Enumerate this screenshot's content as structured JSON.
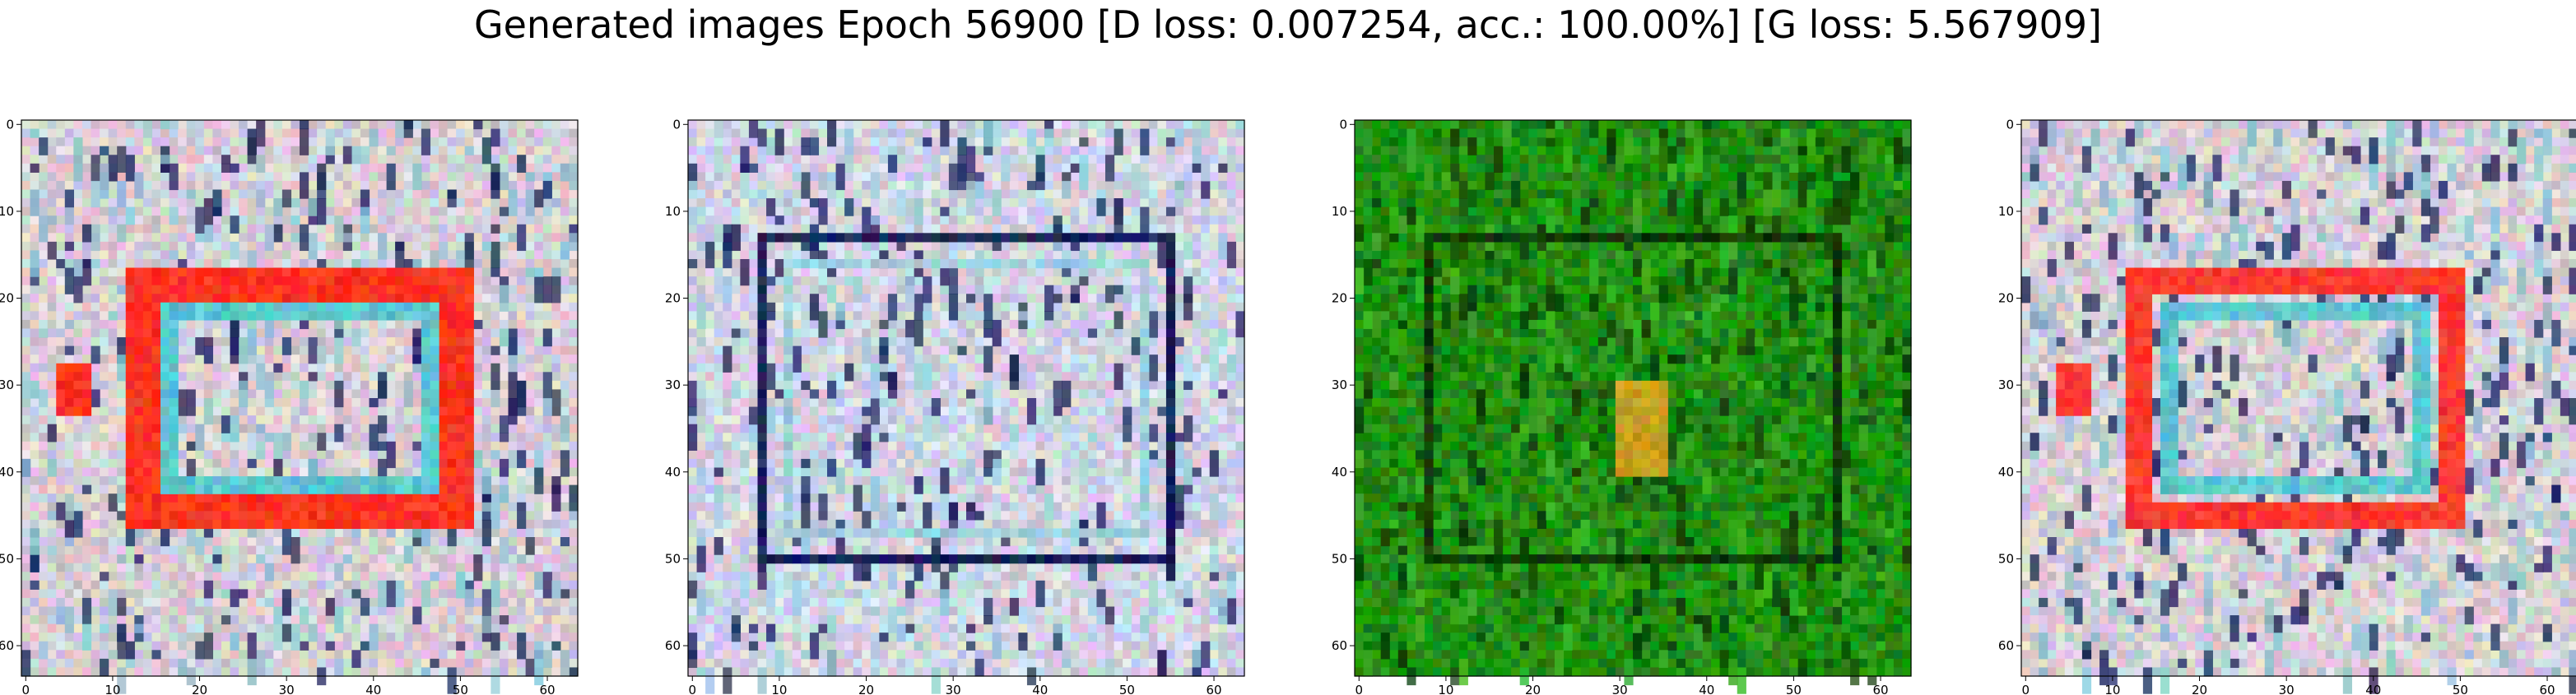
{
  "figure": {
    "title": "Generated images Epoch 56900 [D loss: 0.007254, acc.: 100.00%] [G loss: 5.567909]"
  },
  "chart_data": [
    {
      "type": "heatmap",
      "panel": 1,
      "xlim": [
        -0.5,
        63.5
      ],
      "ylim": [
        63.5,
        -0.5
      ],
      "xticks": [
        0,
        10,
        20,
        30,
        40,
        50,
        60
      ],
      "yticks": [
        0,
        10,
        20,
        30,
        40,
        50,
        60
      ],
      "grid": false,
      "palette": {
        "background": "#d7cfd6",
        "line_dark": "#1a2358",
        "line_light": "#8fc4d2",
        "accent": "#ff3420"
      },
      "regions": [
        {
          "shape": "frame",
          "x": [
            11.5,
            51.5
          ],
          "y": [
            16.5,
            46.5
          ],
          "thickness": 4,
          "color": "#ff3420"
        },
        {
          "shape": "frame",
          "x": [
            15.5,
            47.5
          ],
          "y": [
            20.5,
            42.5
          ],
          "thickness": 2,
          "color": "#5cc7cf"
        },
        {
          "shape": "blob",
          "x": [
            4,
            7
          ],
          "y": [
            28,
            33
          ],
          "color": "#ff3420"
        }
      ]
    },
    {
      "type": "heatmap",
      "panel": 2,
      "xlim": [
        -0.5,
        63.5
      ],
      "ylim": [
        63.5,
        -0.5
      ],
      "xticks": [
        0,
        10,
        20,
        30,
        40,
        50,
        60
      ],
      "yticks": [
        0,
        10,
        20,
        30,
        40,
        50,
        60
      ],
      "grid": false,
      "palette": {
        "background": "#d2d4e2",
        "line_dark": "#1a2358",
        "line_light": "#9fd0dc",
        "accent": "#a84a3a"
      },
      "regions": [
        {
          "shape": "frame",
          "x": [
            7.5,
            55.5
          ],
          "y": [
            12.5,
            50.5
          ],
          "thickness": 1,
          "color": "#1a2358"
        },
        {
          "shape": "frame",
          "x": [
            10.5,
            52.5
          ],
          "y": [
            15.5,
            47.5
          ],
          "thickness": 1,
          "color": "#9fd0dc"
        }
      ]
    },
    {
      "type": "heatmap",
      "panel": 3,
      "xlim": [
        -0.5,
        63.5
      ],
      "ylim": [
        63.5,
        -0.5
      ],
      "xticks": [
        0,
        10,
        20,
        30,
        40,
        50,
        60
      ],
      "yticks": [
        0,
        10,
        20,
        30,
        40,
        50,
        60
      ],
      "grid": false,
      "palette": {
        "background": "#1f8c10",
        "line_dark": "#0c3a06",
        "line_light": "#3fb226",
        "accent": "#c9a020"
      },
      "regions": [
        {
          "shape": "frame",
          "x": [
            7.5,
            55.5
          ],
          "y": [
            12.5,
            50.5
          ],
          "thickness": 1,
          "color": "#0c3a06"
        },
        {
          "shape": "blob",
          "x": [
            30,
            35
          ],
          "y": [
            30,
            40
          ],
          "color": "#c9a020"
        }
      ]
    },
    {
      "type": "heatmap",
      "panel": 4,
      "xlim": [
        -0.5,
        63.5
      ],
      "ylim": [
        63.5,
        -0.5
      ],
      "xticks": [
        0,
        10,
        20,
        30,
        40,
        50,
        60
      ],
      "yticks": [
        0,
        10,
        20,
        30,
        40,
        50,
        60
      ],
      "grid": false,
      "palette": {
        "background": "#d7cfd6",
        "line_dark": "#1a2358",
        "line_light": "#8fc4d2",
        "accent": "#ff3a30"
      },
      "regions": [
        {
          "shape": "frame",
          "x": [
            11.5,
            50.5
          ],
          "y": [
            16.5,
            46.5
          ],
          "thickness": 3,
          "color": "#ff3a30"
        },
        {
          "shape": "frame",
          "x": [
            15.5,
            46.5
          ],
          "y": [
            20.5,
            42.5
          ],
          "thickness": 2,
          "color": "#5cc7cf"
        },
        {
          "shape": "blob",
          "x": [
            4,
            7
          ],
          "y": [
            28,
            33
          ],
          "color": "#ff3a30"
        }
      ]
    }
  ]
}
